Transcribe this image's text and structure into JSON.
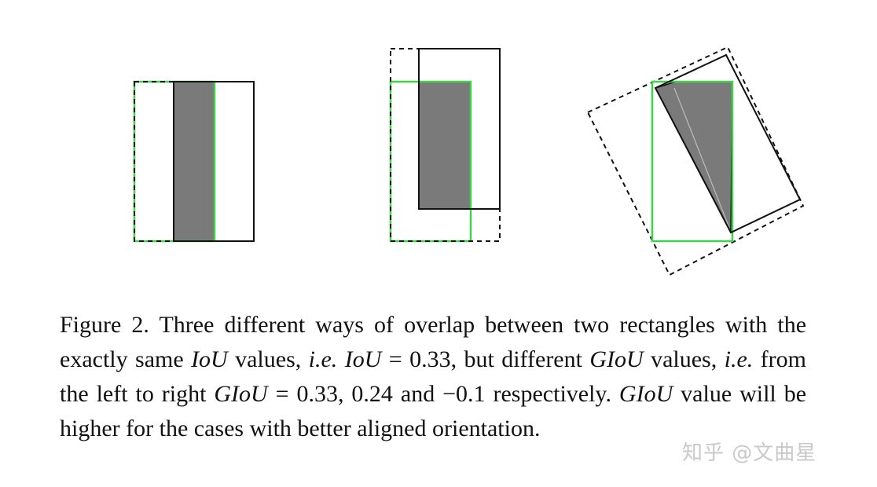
{
  "figure": {
    "colors": {
      "green": "#3fd24a",
      "gray": "#7a7a7a",
      "black": "#111111",
      "light": "#bdbdbd"
    },
    "panels": [
      "aligned-overlap",
      "offset-overlap",
      "rotated-overlap"
    ]
  },
  "caption": {
    "label": "Figure 2.",
    "t1": " Three different ways of overlap between two rectangles with the exactly same ",
    "m1": "IoU",
    "t2": " values, ",
    "ie1": "i.e.",
    "m2": " IoU",
    "eq1": " = 0.33",
    "t3": ", but different ",
    "m3": "GIoU",
    "t4": " values, ",
    "ie2": "i.e.",
    "t5": " from the left to right ",
    "m4": "GIoU",
    "eq2": " = 0.33, 0.24",
    "t6": " and ",
    "neg": "−0.1",
    "t7": " respectively. ",
    "m5": "GIoU",
    "t8": " value will be higher for the cases with better aligned orientation."
  },
  "watermark": "知乎 @文曲星"
}
